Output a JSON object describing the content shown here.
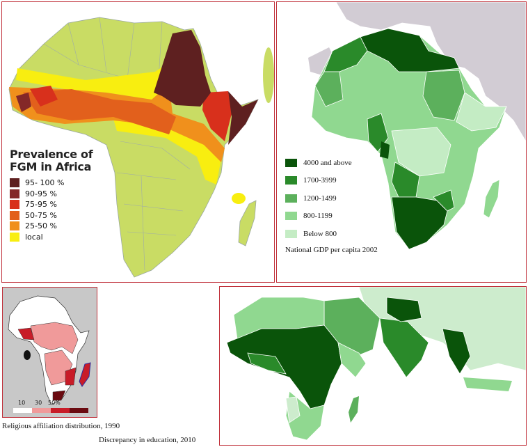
{
  "fgm_map": {
    "title_line1": "Prevalence of",
    "title_line2": "FGM in Africa",
    "legend": [
      {
        "label": "95- 100 %",
        "color": "#5e2020"
      },
      {
        "label": "90-95 %",
        "color": "#842828"
      },
      {
        "label": "75-95 %",
        "color": "#d8301c"
      },
      {
        "label": "50-75 %",
        "color": "#e2601c"
      },
      {
        "label": "25-50 %",
        "color": "#f0901c"
      },
      {
        "label": "local",
        "color": "#f8ee10"
      }
    ],
    "base_color": "#c9dc64"
  },
  "gdp_map": {
    "legend": [
      {
        "label": "4000 and above",
        "color": "#0a540a"
      },
      {
        "label": "1700-3999",
        "color": "#2a8a2a"
      },
      {
        "label": "1200-1499",
        "color": "#5cb05c"
      },
      {
        "label": "800-1199",
        "color": "#90d890"
      },
      {
        "label": "Below 800",
        "color": "#c4ecc4"
      }
    ],
    "caption": "National GDP  per capita  2002",
    "other_land_color": "#d2ccd4"
  },
  "religion_map": {
    "scale_labels": [
      "10",
      "30",
      "50%"
    ],
    "scale_colors": [
      "#ffffff",
      "#f09a9a",
      "#c81c28",
      "#6a0a10"
    ],
    "caption": "Religious affiliation distribution, 1990"
  },
  "education_map": {
    "caption": "Discrepancy in education, 2010"
  }
}
